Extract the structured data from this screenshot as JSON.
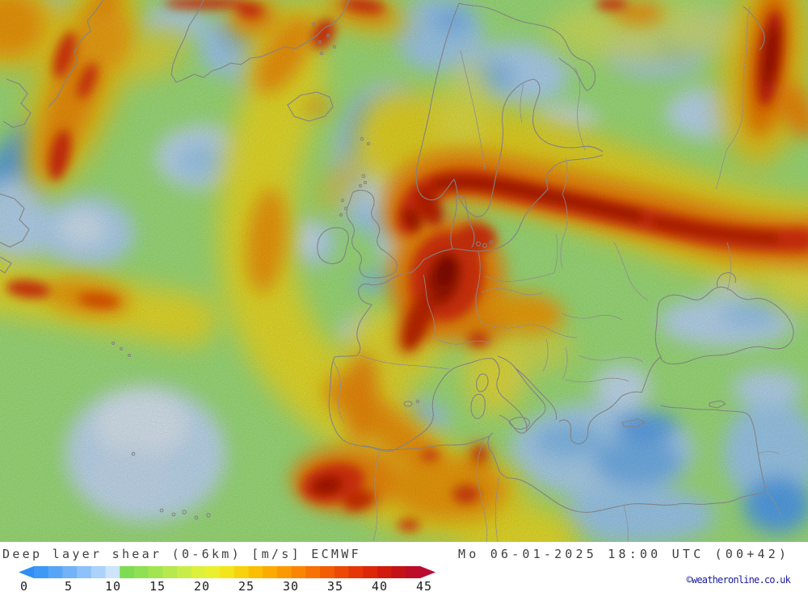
{
  "legend": {
    "title": "Deep layer shear (0-6km) [m/s] ECMWF",
    "datetime": "Mo 06-01-2025 18:00 UTC (00+42)",
    "copyright": "©weatheronline.co.uk"
  },
  "colorbar": {
    "unit": "m/s",
    "min": 0,
    "max": 45,
    "ticks": [
      0,
      5,
      10,
      15,
      20,
      25,
      30,
      35,
      40,
      45
    ],
    "cells": [
      "#3e98f6",
      "#57a5f7",
      "#71b2f8",
      "#8dc1fa",
      "#abd2fb",
      "#cde4fd",
      "#7edc52",
      "#8fe052",
      "#a2e550",
      "#b5e94e",
      "#c9ed48",
      "#dcf03c",
      "#eaf02e",
      "#f3e51b",
      "#f7d30d",
      "#fabf05",
      "#fbab02",
      "#fb9902",
      "#fa8503",
      "#f77104",
      "#f25c05",
      "#ec4806",
      "#e53607",
      "#dc2809",
      "#d01b0d",
      "#c41216",
      "#bc0c27"
    ],
    "below_min_color": "#2f8df3",
    "above_max_color": "#bb0a31"
  },
  "map": {
    "base_color": "#a6e981",
    "coast_color": "#9b9b9b",
    "border_color": "#a8a8a8"
  }
}
